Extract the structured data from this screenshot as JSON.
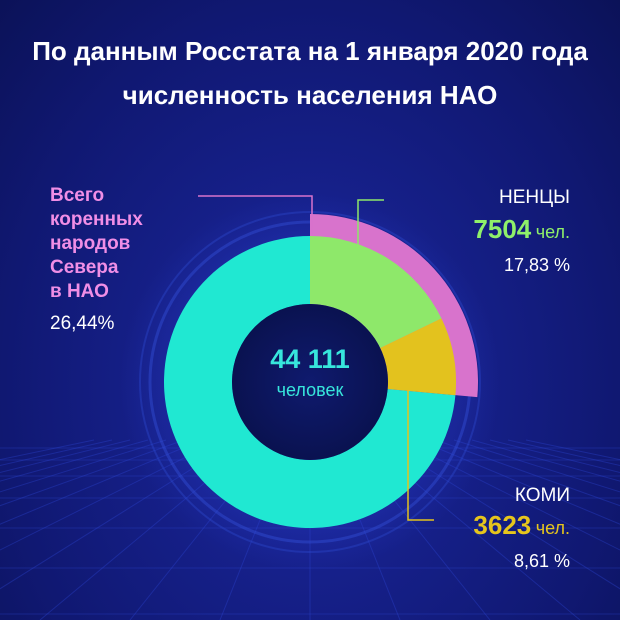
{
  "title_line1": "По данным Росстата на 1 января 2020 года",
  "title_line2": "численность населения НАО",
  "colors": {
    "background": "#121a7c",
    "indigenous": "#d873cc",
    "nenets": "#8ee86a",
    "komi": "#e3c21e",
    "other": "#20e8d2",
    "center_text": "#37e6dc"
  },
  "chart_data": {
    "type": "pie",
    "style": "donut",
    "total_value": "44 111",
    "total_unit": "человек",
    "slices": [
      {
        "label": "Всего коренных народов Севера в НАО",
        "percent": 26.44,
        "percent_text": "26,44%"
      },
      {
        "label": "НЕНЦЫ",
        "value": 7504,
        "value_text": "7504",
        "unit": "чел.",
        "percent": 17.83,
        "percent_text": "17,83 %"
      },
      {
        "label": "КОМИ",
        "value": 3623,
        "value_text": "3623",
        "unit": "чел.",
        "percent": 8.61,
        "percent_text": "8,61 %"
      }
    ]
  },
  "labels": {
    "indigenous_name": "Всего\nкоренных\nнародов\nСевера\nв НАО"
  }
}
